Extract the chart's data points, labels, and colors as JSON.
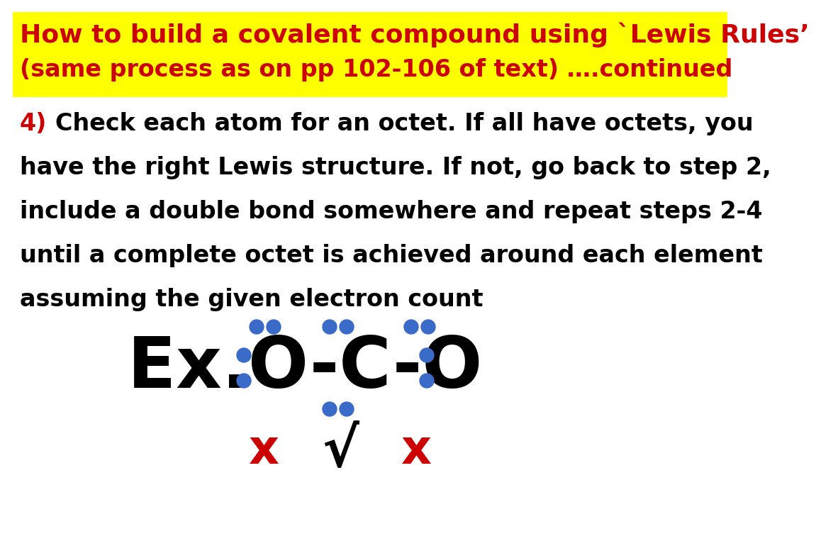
{
  "title_line1": "How to build a covalent compound using `Lewis Rules’",
  "title_line2": "(same process as on pp 102-106 of text) ….continued",
  "title_bg": "#FFFF00",
  "title_color": "#CC0000",
  "title_fs1": 26,
  "title_fs2": 24,
  "body_color": "#000000",
  "body_4_color": "#CC0000",
  "body_fontsize": 24,
  "dot_color": "#3A6BC8",
  "molecule_color": "#000000",
  "molecule_fontsize": 72,
  "check_x_color": "#CC0000",
  "check_mark_color": "#000000",
  "background_color": "#FFFFFF",
  "body_lines": [
    "Check each atom for an octet. If all have octets, you",
    "have the right Lewis structure. If not, go back to step 2,",
    "include a double bond somewhere and repeat steps 2-4",
    "until a complete octet is achieved around each element",
    "assuming the given electron count"
  ]
}
